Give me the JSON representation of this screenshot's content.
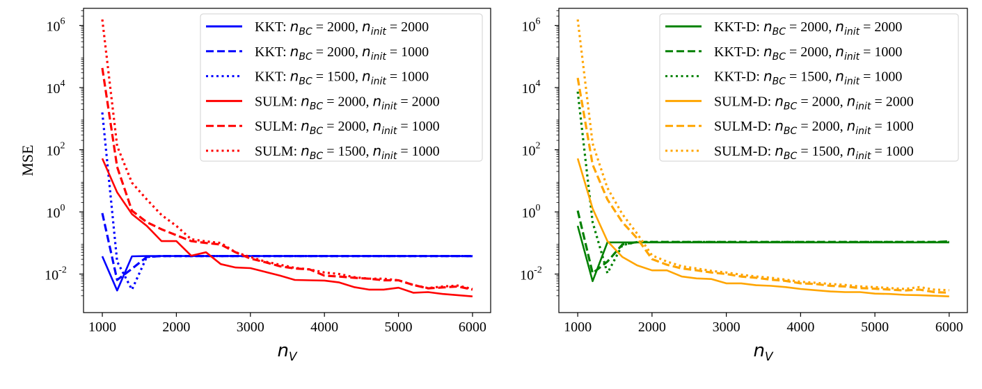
{
  "chart_data": [
    {
      "type": "line",
      "ylabel": "MSE",
      "xlabel": "n_V",
      "yscale": "log",
      "xlim": [
        746,
        6245
      ],
      "ylim_log10": [
        -3.24,
        6.55
      ],
      "xticks": [
        1000,
        2000,
        3000,
        4000,
        5000,
        6000
      ],
      "yticks": [
        "10^-2",
        "10^0",
        "10^2",
        "10^4",
        "10^6"
      ],
      "legend_position": "top-right",
      "grid": false,
      "x": [
        1000,
        1200,
        1400,
        1600,
        1800,
        2000,
        2200,
        2400,
        2600,
        2800,
        3000,
        3200,
        3400,
        3600,
        3800,
        4000,
        4200,
        4400,
        4600,
        4800,
        5000,
        5200,
        5400,
        5600,
        5800,
        6000
      ],
      "series": [
        {
          "name": "KKT: n_BC = 2000, n_init = 2000",
          "prefix": "KKT:",
          "nbc": "2000",
          "ninit": "2000",
          "color": "#0000ff",
          "style": "solid",
          "log10_values": [
            -1.43,
            -2.53,
            -1.43,
            -1.42,
            -1.42,
            -1.42,
            -1.42,
            -1.42,
            -1.42,
            -1.42,
            -1.42,
            -1.42,
            -1.42,
            -1.42,
            -1.42,
            -1.42,
            -1.42,
            -1.42,
            -1.42,
            -1.42,
            -1.42,
            -1.42,
            -1.42,
            -1.42,
            -1.42,
            -1.43
          ]
        },
        {
          "name": "KKT: n_BC = 2000, n_init = 1000",
          "prefix": "KKT:",
          "nbc": "2000",
          "ninit": "1000",
          "color": "#0000ff",
          "style": "dashed",
          "log10_values": [
            -0.04,
            -2.19,
            -1.83,
            -1.45,
            -1.42,
            -1.42,
            -1.42,
            -1.42,
            -1.42,
            -1.42,
            -1.42,
            -1.42,
            -1.42,
            -1.42,
            -1.42,
            -1.42,
            -1.42,
            -1.42,
            -1.42,
            -1.42,
            -1.42,
            -1.42,
            -1.42,
            -1.42,
            -1.42,
            -1.42
          ]
        },
        {
          "name": "KKT: n_BC = 1500, n_init = 1000",
          "prefix": "KKT:",
          "nbc": "1500",
          "ninit": "1000",
          "color": "#0000ff",
          "style": "dotted",
          "log10_values": [
            3.2,
            -1.6,
            -2.5,
            -1.45,
            -1.42,
            -1.42,
            -1.42,
            -1.42,
            -1.42,
            -1.42,
            -1.42,
            -1.42,
            -1.42,
            -1.42,
            -1.42,
            -1.42,
            -1.42,
            -1.42,
            -1.42,
            -1.42,
            -1.42,
            -1.42,
            -1.42,
            -1.42,
            -1.42,
            -1.42
          ]
        },
        {
          "name": "SULM: n_BC = 2000, n_init = 2000",
          "prefix": "SULM:",
          "nbc": "2000",
          "ninit": "2000",
          "color": "#ff0000",
          "style": "solid",
          "log10_values": [
            1.72,
            0.63,
            -0.07,
            -0.45,
            -0.94,
            -0.94,
            -1.41,
            -1.3,
            -1.68,
            -1.79,
            -1.81,
            -1.93,
            -2.05,
            -2.19,
            -2.2,
            -2.21,
            -2.27,
            -2.42,
            -2.5,
            -2.5,
            -2.44,
            -2.6,
            -2.58,
            -2.64,
            -2.68,
            -2.72
          ]
        },
        {
          "name": "SULM: n_BC = 2000, n_init = 1000",
          "prefix": "SULM:",
          "nbc": "2000",
          "ninit": "1000",
          "color": "#ff0000",
          "style": "dashed",
          "log10_values": [
            4.63,
            1.45,
            0.04,
            -0.33,
            -0.56,
            -0.75,
            -0.94,
            -1.0,
            -1.05,
            -1.3,
            -1.5,
            -1.62,
            -1.75,
            -1.82,
            -1.85,
            -2.05,
            -2.08,
            -2.12,
            -2.15,
            -2.2,
            -2.2,
            -2.35,
            -2.46,
            -2.43,
            -2.4,
            -2.5
          ]
        },
        {
          "name": "SULM: n_BC = 1500, n_init = 1000",
          "prefix": "SULM:",
          "nbc": "1500",
          "ninit": "1000",
          "color": "#ff0000",
          "style": "dotted",
          "log10_values": [
            6.19,
            2.12,
            0.94,
            0.4,
            -0.1,
            -0.45,
            -0.88,
            -0.95,
            -1.0,
            -1.3,
            -1.45,
            -1.6,
            -1.7,
            -1.8,
            -1.85,
            -1.95,
            -2.0,
            -2.1,
            -2.15,
            -2.15,
            -2.2,
            -2.35,
            -2.45,
            -2.4,
            -2.37,
            -2.48
          ]
        }
      ]
    },
    {
      "type": "line",
      "ylabel": "",
      "xlabel": "n_V",
      "yscale": "log",
      "xlim": [
        746,
        6245
      ],
      "ylim_log10": [
        -3.24,
        6.55
      ],
      "xticks": [
        1000,
        2000,
        3000,
        4000,
        5000,
        6000
      ],
      "yticks": [
        "10^-2",
        "10^0",
        "10^2",
        "10^4",
        "10^6"
      ],
      "legend_position": "top-right",
      "grid": false,
      "x": [
        1000,
        1200,
        1400,
        1600,
        1800,
        2000,
        2200,
        2400,
        2600,
        2800,
        3000,
        3200,
        3400,
        3600,
        3800,
        4000,
        4200,
        4400,
        4600,
        4800,
        5000,
        5200,
        5400,
        5600,
        5800,
        6000
      ],
      "series": [
        {
          "name": "KKT-D: n_BC = 2000, n_init = 2000",
          "prefix": "KKT-D:",
          "nbc": "2000",
          "ninit": "2000",
          "color": "#008000",
          "style": "solid",
          "log10_values": [
            -0.45,
            -2.23,
            -0.98,
            -0.98,
            -0.98,
            -0.98,
            -0.98,
            -0.98,
            -0.98,
            -0.98,
            -0.98,
            -0.98,
            -0.98,
            -0.98,
            -0.98,
            -0.98,
            -0.98,
            -0.98,
            -0.98,
            -0.98,
            -0.98,
            -0.98,
            -0.98,
            -0.98,
            -0.98,
            -0.98
          ]
        },
        {
          "name": "KKT-D: n_BC = 2000, n_init = 1000",
          "prefix": "KKT-D:",
          "nbc": "2000",
          "ninit": "1000",
          "color": "#008000",
          "style": "dashed",
          "log10_values": [
            0.04,
            -1.97,
            -1.6,
            -1.05,
            -0.97,
            -0.97,
            -0.97,
            -0.97,
            -0.97,
            -0.97,
            -0.97,
            -0.97,
            -0.97,
            -0.97,
            -0.97,
            -0.97,
            -0.97,
            -0.97,
            -0.97,
            -0.97,
            -0.97,
            -0.97,
            -0.97,
            -0.97,
            -0.97,
            -0.95
          ]
        },
        {
          "name": "KKT-D: n_BC = 1500, n_init = 1000",
          "prefix": "KKT-D:",
          "nbc": "1500",
          "ninit": "1000",
          "color": "#008000",
          "style": "dotted",
          "log10_values": [
            3.87,
            -0.33,
            -1.97,
            -1.07,
            -0.97,
            -0.97,
            -0.97,
            -0.97,
            -0.97,
            -0.97,
            -0.97,
            -0.97,
            -0.97,
            -0.97,
            -0.97,
            -0.97,
            -0.97,
            -0.97,
            -0.97,
            -0.97,
            -0.97,
            -0.97,
            -0.97,
            -0.97,
            -0.97,
            -0.97
          ]
        },
        {
          "name": "SULM-D: n_BC = 2000, n_init = 2000",
          "prefix": "SULM-D:",
          "nbc": "2000",
          "ninit": "2000",
          "color": "#ffa500",
          "style": "solid",
          "log10_values": [
            1.72,
            0.11,
            -0.94,
            -1.45,
            -1.72,
            -1.88,
            -1.88,
            -2.08,
            -2.14,
            -2.16,
            -2.3,
            -2.3,
            -2.36,
            -2.38,
            -2.42,
            -2.48,
            -2.52,
            -2.56,
            -2.58,
            -2.58,
            -2.63,
            -2.64,
            -2.67,
            -2.68,
            -2.7,
            -2.72
          ]
        },
        {
          "name": "SULM-D: n_BC = 2000, n_init = 1000",
          "prefix": "SULM-D:",
          "nbc": "2000",
          "ninit": "1000",
          "color": "#ffa500",
          "style": "dashed",
          "log10_values": [
            4.31,
            1.52,
            0.4,
            -0.33,
            -0.85,
            -1.52,
            -1.7,
            -1.82,
            -1.88,
            -1.95,
            -2.0,
            -2.08,
            -2.12,
            -2.18,
            -2.22,
            -2.3,
            -2.32,
            -2.38,
            -2.4,
            -2.45,
            -2.47,
            -2.5,
            -2.53,
            -2.5,
            -2.58,
            -2.6
          ]
        },
        {
          "name": "SULM-D: n_BC = 1500, n_init = 1000",
          "prefix": "SULM-D:",
          "nbc": "1500",
          "ninit": "1000",
          "color": "#ffa500",
          "style": "dotted",
          "log10_values": [
            6.19,
            2.2,
            0.77,
            -0.07,
            -0.7,
            -1.4,
            -1.6,
            -1.75,
            -1.82,
            -1.9,
            -1.95,
            -2.02,
            -2.08,
            -2.12,
            -2.18,
            -2.25,
            -2.28,
            -2.32,
            -2.35,
            -2.4,
            -2.42,
            -2.45,
            -2.48,
            -2.42,
            -2.5,
            -2.52
          ]
        }
      ]
    }
  ]
}
